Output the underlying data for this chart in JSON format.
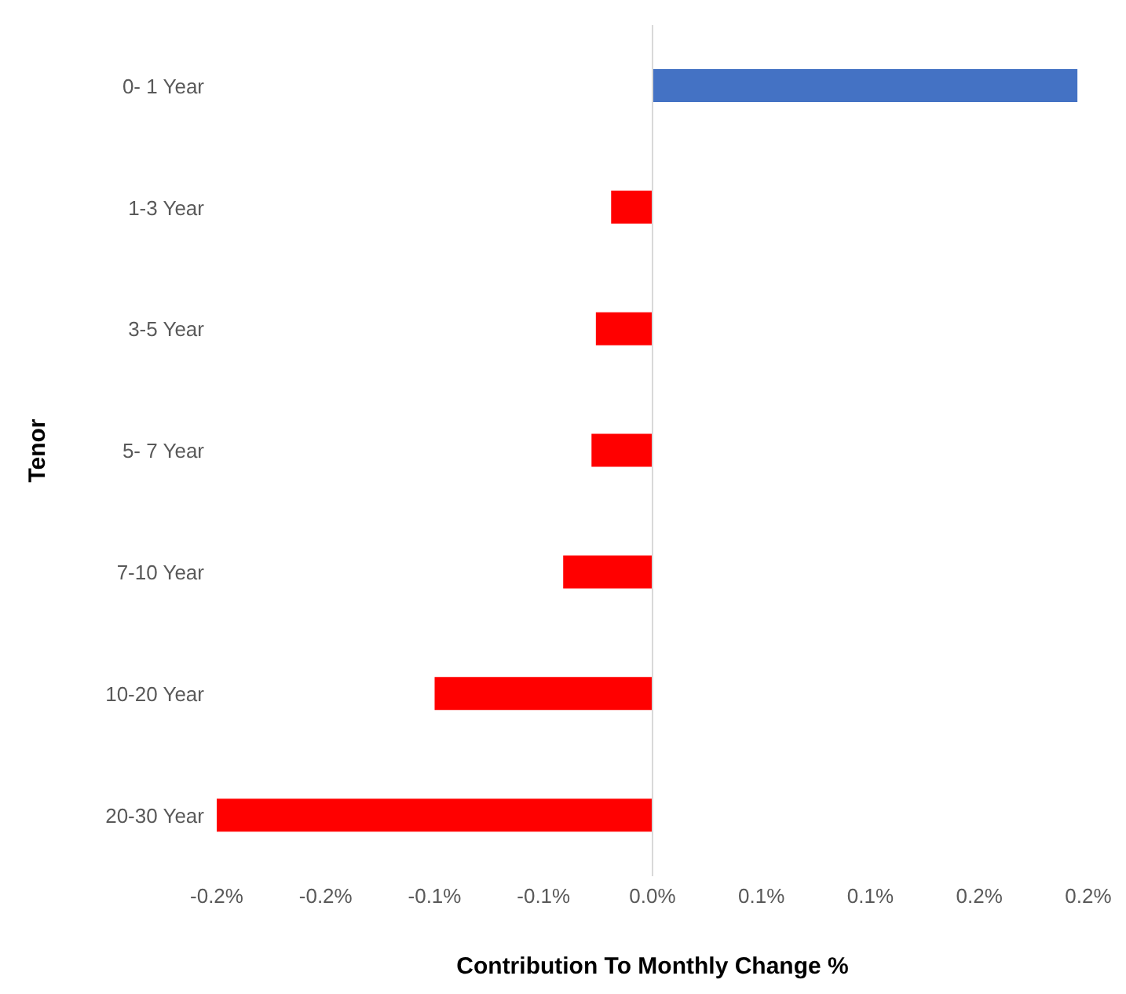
{
  "chart_data": {
    "type": "bar",
    "orientation": "horizontal",
    "xlabel": "Contribution To Monthly Change %",
    "ylabel": "Tenor",
    "categories": [
      "0- 1 Year",
      "1-3 Year",
      "3-5 Year",
      "5- 7 Year",
      "7-10 Year",
      "10-20 Year",
      "20-30 Year"
    ],
    "values": [
      0.195,
      -0.019,
      -0.026,
      -0.028,
      -0.041,
      -0.1,
      -0.2
    ],
    "colors": [
      "#4472c4",
      "#ff0000",
      "#ff0000",
      "#ff0000",
      "#ff0000",
      "#ff0000",
      "#ff0000"
    ],
    "xlim": [
      -0.2,
      0.2
    ],
    "xticks": [
      {
        "value": -0.2,
        "label": "-0.2%"
      },
      {
        "value": -0.15,
        "label": "-0.2%"
      },
      {
        "value": -0.1,
        "label": "-0.1%"
      },
      {
        "value": -0.05,
        "label": "-0.1%"
      },
      {
        "value": 0,
        "label": "0.0%"
      },
      {
        "value": 0.05,
        "label": "0.1%"
      },
      {
        "value": 0.1,
        "label": "0.1%"
      },
      {
        "value": 0.15,
        "label": "0.2%"
      },
      {
        "value": 0.2,
        "label": "0.2%"
      }
    ],
    "ref_lines": [
      {
        "axis": "x",
        "value": 0,
        "color": "#d9d9d9"
      }
    ],
    "legend": false
  }
}
